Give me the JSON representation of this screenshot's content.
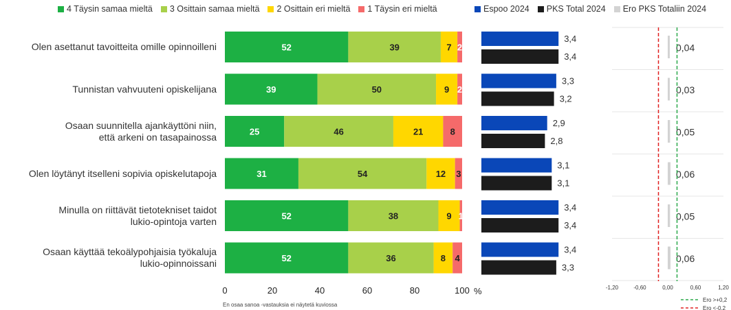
{
  "chart_data": [
    {
      "type": "bar",
      "stacked": true,
      "orientation": "horizontal",
      "categories": [
        "Olen asettanut tavoitteita omille opinnoilleni",
        "Tunnistan vahvuuteni opiskelijana",
        "Osaan suunnitella ajankäyttöni niin, että arkeni on tasapainossa",
        "Olen löytänyt itselleni sopivia opiskelutapoja",
        "Minulla on riittävät tietotekniset taidot lukio-opintoja varten",
        "Osaan käyttää tekoälypohjaisia työkaluja lukio-opinnoissani"
      ],
      "category_lines": [
        [
          "Olen asettanut tavoitteita omille opinnoilleni"
        ],
        [
          "Tunnistan vahvuuteni opiskelijana"
        ],
        [
          "Osaan suunnitella ajankäyttöni niin,",
          "että arkeni on tasapainossa"
        ],
        [
          "Olen löytänyt itselleni sopivia opiskelutapoja"
        ],
        [
          "Minulla on riittävät tietotekniset taidot",
          "lukio-opintoja varten"
        ],
        [
          "Osaan käyttää tekoälypohjaisia työkaluja",
          "lukio-opinnoissani"
        ]
      ],
      "series": [
        {
          "name": "4 Täysin samaa mieltä",
          "color": "#1db044",
          "values": [
            52,
            39,
            25,
            31,
            52,
            52
          ]
        },
        {
          "name": "3 Osittain samaa mieltä",
          "color": "#a8d04a",
          "values": [
            39,
            50,
            46,
            54,
            38,
            36
          ]
        },
        {
          "name": "2 Osittain eri mieltä",
          "color": "#ffd700",
          "values": [
            7,
            9,
            21,
            12,
            9,
            8
          ]
        },
        {
          "name": "1 Täysin eri mieltä",
          "color": "#f56a6a",
          "values": [
            2,
            2,
            8,
            3,
            1,
            4
          ]
        }
      ],
      "xticks": [
        0,
        20,
        40,
        60,
        80,
        100
      ],
      "xlim": [
        0,
        100
      ],
      "unit": "%",
      "footnote": "En osaa sanoa -vastauksia ei näytetä kuviossa"
    },
    {
      "type": "bar",
      "orientation": "horizontal",
      "series": [
        {
          "name": "Espoo 2024",
          "color": "#0a47b8",
          "values": [
            "3,4",
            "3,3",
            "2,9",
            "3,1",
            "3,4",
            "3,4"
          ]
        },
        {
          "name": "PKS Total 2024",
          "color": "#1c1c1c",
          "values": [
            "3,4",
            "3,2",
            "2,8",
            "3,1",
            "3,4",
            "3,3"
          ]
        }
      ],
      "xlim": [
        0,
        4
      ]
    },
    {
      "type": "bar",
      "orientation": "horizontal",
      "series": [
        {
          "name": "Ero PKS Totaliin 2024",
          "color": "#d3d3d3",
          "values": [
            "0,04",
            "0,03",
            "0,05",
            "0,06",
            "0,05",
            "0,06"
          ]
        }
      ],
      "xticks": [
        "-1,20",
        "-0,60",
        "0,00",
        "0,60",
        "1,20"
      ],
      "xlim": [
        -1.2,
        1.2
      ],
      "reference_lines": [
        {
          "label": "Ero >+0,2",
          "value": 0.2,
          "color": "#2aa84a"
        },
        {
          "label": "Ero <-0,2",
          "value": -0.2,
          "color": "#e02020"
        }
      ]
    }
  ]
}
